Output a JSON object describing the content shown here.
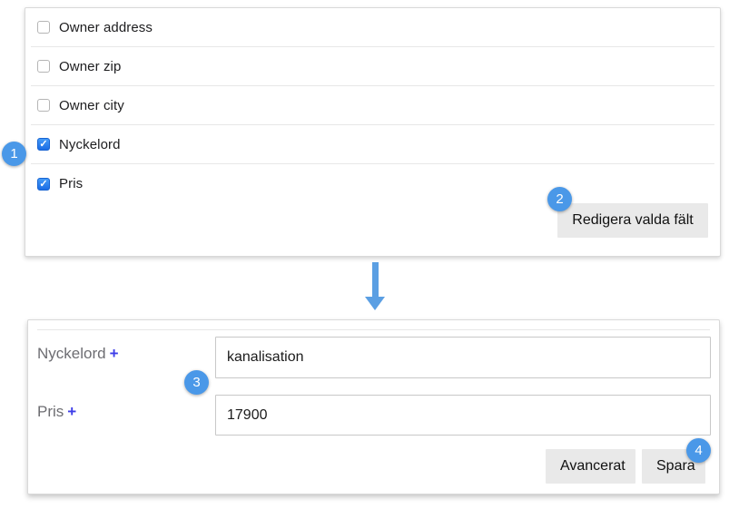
{
  "colors": {
    "accent_blue": "#4a98e8",
    "checkbox_blue": "#1a6ce5",
    "arrow_blue": "#5b9fe3",
    "plus_purple": "#3d3de8",
    "button_gray": "#e9e9e9",
    "label_gray": "#6d6d72"
  },
  "icons": {
    "checkmark": "✓",
    "plus": "+"
  },
  "step_badges": [
    "1",
    "2",
    "3",
    "4"
  ],
  "top_panel": {
    "fields": [
      {
        "label": "Owner address",
        "checked": false
      },
      {
        "label": "Owner zip",
        "checked": false
      },
      {
        "label": "Owner city",
        "checked": false
      },
      {
        "label": "Nyckelord",
        "checked": true
      },
      {
        "label": "Pris",
        "checked": true
      }
    ],
    "edit_button_label": "Redigera valda fält"
  },
  "bottom_panel": {
    "fields": [
      {
        "label": "Nyckelord",
        "value": "kanalisation"
      },
      {
        "label": "Pris",
        "value": "17900"
      }
    ],
    "advanced_button_label": "Avancerat",
    "save_button_label": "Spara"
  }
}
